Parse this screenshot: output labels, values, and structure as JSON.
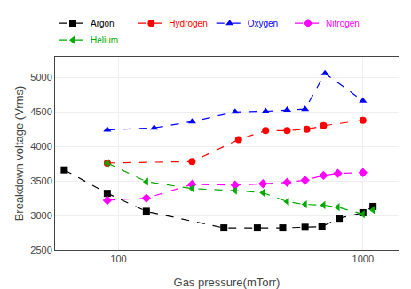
{
  "chart_data": {
    "type": "line",
    "xlabel": "Gas pressure(mTorr)",
    "ylabel": "Breakdown voltage (Vrms)",
    "log": "x",
    "xlim": [
      55,
      1400
    ],
    "ylim": [
      2500,
      5300
    ],
    "xticks": [
      100,
      1000
    ],
    "yticks": [
      2500,
      3000,
      3500,
      4000,
      4500,
      5000
    ],
    "grid": true,
    "legend": "upper left",
    "series": [
      {
        "name": "Argon",
        "color": "#000000",
        "marker": "square",
        "line_style": "dashed",
        "x": [
          60,
          90,
          130,
          270,
          370,
          470,
          580,
          680,
          800,
          1000,
          1100
        ],
        "values": [
          3660,
          3320,
          3060,
          2820,
          2820,
          2820,
          2830,
          2840,
          2960,
          3040,
          3130
        ]
      },
      {
        "name": "Hydrogen",
        "color": "#ff0000",
        "marker": "circle",
        "line_style": "dashed",
        "x": [
          90,
          200,
          310,
          400,
          490,
          590,
          690,
          1000
        ],
        "values": [
          3760,
          3780,
          4100,
          4230,
          4230,
          4250,
          4300,
          4380
        ]
      },
      {
        "name": "Oxygen",
        "color": "#0000ff",
        "marker": "triangle-up",
        "line_style": "dashed",
        "x": [
          90,
          140,
          200,
          300,
          400,
          490,
          580,
          700,
          1000
        ],
        "values": [
          4240,
          4270,
          4360,
          4500,
          4510,
          4530,
          4540,
          5060,
          4660
        ]
      },
      {
        "name": "Nitrogen",
        "color": "#ff00ff",
        "marker": "diamond",
        "line_style": "dashed",
        "x": [
          90,
          130,
          200,
          300,
          390,
          490,
          580,
          690,
          790,
          1000
        ],
        "values": [
          3220,
          3250,
          3450,
          3440,
          3460,
          3480,
          3510,
          3580,
          3610,
          3620
        ]
      },
      {
        "name": "Helium",
        "color": "#00aa00",
        "marker": "triangle-left",
        "line_style": "dashed",
        "x": [
          90,
          130,
          200,
          300,
          390,
          490,
          580,
          690,
          790,
          1000,
          1100
        ],
        "values": [
          3760,
          3490,
          3390,
          3360,
          3330,
          3200,
          3160,
          3150,
          3120,
          3020,
          3080
        ]
      }
    ]
  }
}
